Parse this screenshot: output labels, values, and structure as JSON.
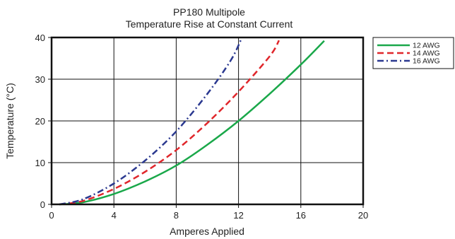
{
  "chart_data": {
    "type": "line",
    "title": "PP180 Multipole",
    "subtitle": "Temperature Rise at Constant Current",
    "xlabel": "Amperes Applied",
    "ylabel": "Temperature (°C)",
    "xlim": [
      0,
      20
    ],
    "ylim": [
      0,
      40
    ],
    "xticks": [
      0,
      4,
      8,
      12,
      16,
      20
    ],
    "yticks": [
      0,
      10,
      20,
      30,
      40
    ],
    "grid": true,
    "legend_position": "right",
    "series": [
      {
        "name": "12  AWG",
        "color": "#1aa84a",
        "dash": "solid",
        "x": [
          0.5,
          2,
          4,
          6,
          8,
          10,
          12,
          14,
          16,
          17.5
        ],
        "y": [
          0,
          0.5,
          2.5,
          5.5,
          9.3,
          14.3,
          20,
          26.5,
          33.5,
          39.2
        ]
      },
      {
        "name": "14  AWG",
        "color": "#e0262b",
        "dash": "dash",
        "x": [
          0.5,
          2,
          4,
          6,
          8,
          10,
          12,
          14,
          14.6
        ],
        "y": [
          0,
          0.8,
          3.7,
          7.8,
          13,
          19.5,
          27,
          35.5,
          39.3
        ]
      },
      {
        "name": "16  AWG",
        "color": "#2b3990",
        "dash": "dashdot",
        "x": [
          0.5,
          2,
          4,
          6,
          8,
          10,
          11.5,
          12.2
        ],
        "y": [
          0,
          1.2,
          5,
          10.5,
          17.5,
          26.5,
          34.5,
          39.8
        ]
      }
    ]
  }
}
